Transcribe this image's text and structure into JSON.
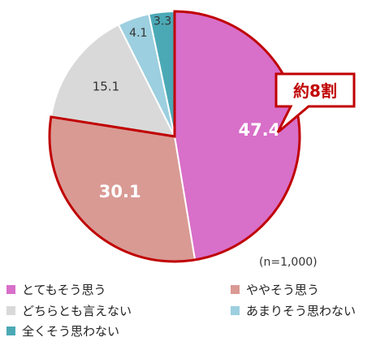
{
  "chart_data": {
    "type": "pie",
    "slices": [
      {
        "label": "とてもそう思う",
        "value": 47.4,
        "value_label": "47.4",
        "color": "#d86fc9"
      },
      {
        "label": "ややそう思う",
        "value": 30.1,
        "value_label": "30.1",
        "color": "#d99a94"
      },
      {
        "label": "どちらとも言えない",
        "value": 15.1,
        "value_label": "15.1",
        "color": "#d9d9d9"
      },
      {
        "label": "あまりそう思わない",
        "value": 4.1,
        "value_label": "4.1",
        "color": "#9ccfdf"
      },
      {
        "label": "全くそう思わない",
        "value": 3.3,
        "value_label": "3.3",
        "color": "#4ba9b6"
      }
    ],
    "highlight_color": "#c00000",
    "callout": "約8割",
    "sample_note": "(n=1,000)",
    "legend_position": "bottom"
  }
}
